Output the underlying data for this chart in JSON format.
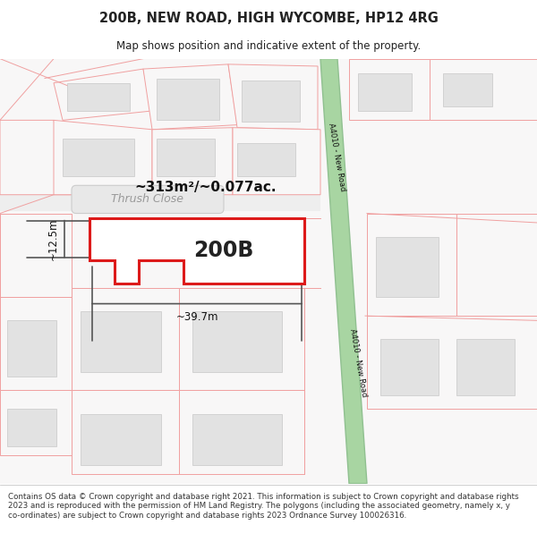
{
  "title_line1": "200B, NEW ROAD, HIGH WYCOMBE, HP12 4RG",
  "title_line2": "Map shows position and indicative extent of the property.",
  "label_200B": "200B",
  "area_label": "~313m²/~0.077ac.",
  "dim_width": "~39.7m",
  "dim_height": "~12.5m",
  "street_label": "Thrush Close",
  "road_label_top": "A4010 - New Road",
  "road_label_bottom": "A4010 - New Road",
  "footer_text": "Contains OS data © Crown copyright and database right 2021. This information is subject to Crown copyright and database rights 2023 and is reproduced with the permission of HM Land Registry. The polygons (including the associated geometry, namely x, y co-ordinates) are subject to Crown copyright and database rights 2023 Ordnance Survey 100026316.",
  "bg_color": "#ffffff",
  "map_bg": "#f8f7f7",
  "road_green": "#a8d5a2",
  "road_green_border": "#90c090",
  "property_red": "#dd1a1a",
  "property_fill": "#ffffff",
  "grid_line_color": "#f0a0a0",
  "building_fill": "#e2e2e2",
  "building_stroke": "#c8c8c8",
  "dim_line_color": "#555555",
  "text_color": "#222222",
  "title_fontsize": 10.5,
  "subtitle_fontsize": 8.5
}
